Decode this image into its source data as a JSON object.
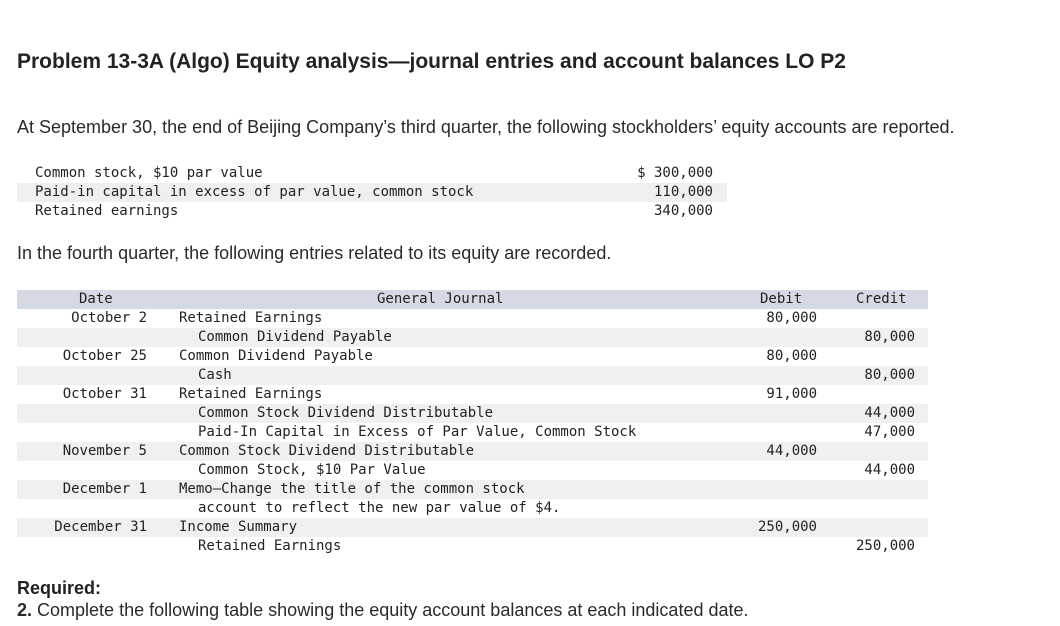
{
  "title": "Problem 13-3A (Algo) Equity analysis—journal entries and account balances LO P2",
  "intro": "At September 30, the end of Beijing Company’s third quarter, the following stockholders’ equity accounts are reported.",
  "balances": [
    {
      "label": "Common stock, $10 par value",
      "amount": "$ 300,000"
    },
    {
      "label": "Paid-in capital in excess of par value, common stock",
      "amount": "110,000"
    },
    {
      "label": "Retained earnings",
      "amount": "340,000"
    }
  ],
  "fourth_quarter_text": "In the fourth quarter, the following entries related to its equity are recorded.",
  "journal": {
    "headers": {
      "date": "Date",
      "general_journal": "General Journal",
      "debit": "Debit",
      "credit": "Credit"
    },
    "rows": [
      {
        "date": "October 2",
        "desc": "Retained Earnings",
        "indent": false,
        "debit": "80,000",
        "credit": ""
      },
      {
        "date": "",
        "desc": "Common Dividend Payable",
        "indent": true,
        "debit": "",
        "credit": "80,000"
      },
      {
        "date": "October 25",
        "desc": "Common Dividend Payable",
        "indent": false,
        "debit": "80,000",
        "credit": ""
      },
      {
        "date": "",
        "desc": "Cash",
        "indent": true,
        "debit": "",
        "credit": "80,000"
      },
      {
        "date": "October 31",
        "desc": "Retained Earnings",
        "indent": false,
        "debit": "91,000",
        "credit": ""
      },
      {
        "date": "",
        "desc": "Common Stock Dividend Distributable",
        "indent": true,
        "debit": "",
        "credit": "44,000"
      },
      {
        "date": "",
        "desc": "Paid-In Capital in Excess of Par Value, Common Stock",
        "indent": true,
        "debit": "",
        "credit": "47,000"
      },
      {
        "date": "November 5",
        "desc": "Common Stock Dividend Distributable",
        "indent": false,
        "debit": "44,000",
        "credit": ""
      },
      {
        "date": "",
        "desc": "Common Stock, $10 Par Value",
        "indent": true,
        "debit": "",
        "credit": "44,000"
      },
      {
        "date": "December 1",
        "desc": "Memo—Change the title of the common stock",
        "indent": false,
        "debit": "",
        "credit": ""
      },
      {
        "date": "",
        "desc": "account to reflect the new par value of $4.",
        "indent": true,
        "debit": "",
        "credit": ""
      },
      {
        "date": "December 31",
        "desc": "Income Summary",
        "indent": false,
        "debit": "250,000",
        "credit": ""
      },
      {
        "date": "",
        "desc": "Retained Earnings",
        "indent": true,
        "debit": "",
        "credit": "250,000"
      }
    ]
  },
  "required_label": "Required:",
  "required_number": "2.",
  "required_text": "Complete the following table showing the equity account balances at each indicated date."
}
